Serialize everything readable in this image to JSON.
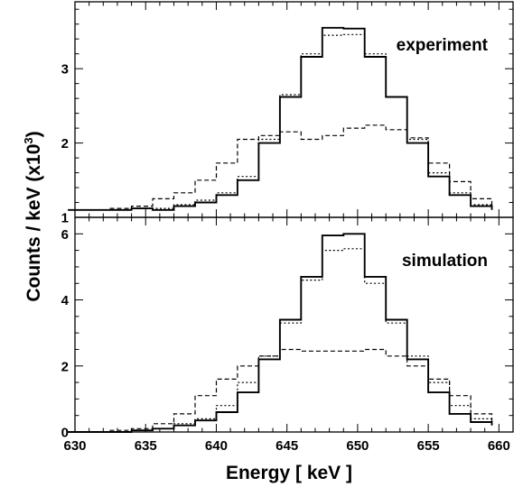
{
  "chart_data": {
    "type": "line",
    "step": true,
    "xlabel": "Energy [ keV ]",
    "ylabel": "Counts / keV (x10",
    "ylabel_sup": "3",
    "ylabel_tail": ")",
    "xlim": [
      630,
      661
    ],
    "x_tick_labels": [
      "630",
      "635",
      "640",
      "645",
      "650",
      "655",
      "660"
    ],
    "bin_edges": [
      629.5,
      631,
      632.5,
      634,
      635.5,
      637,
      638.5,
      640,
      641.5,
      643,
      644.5,
      646,
      647.5,
      649,
      650.5,
      652,
      653.5,
      655,
      656.5,
      658,
      659.5
    ],
    "line_styles": [
      "solid",
      "dotted",
      "dashed"
    ],
    "panels": [
      {
        "label": "experiment",
        "ylim": [
          1,
          3.9
        ],
        "y_tick_labels": [
          "1",
          "2",
          "3"
        ],
        "series": [
          {
            "style": "solid",
            "values": [
              1.1,
              1.1,
              1.1,
              1.12,
              1.1,
              1.15,
              1.2,
              1.3,
              1.5,
              2.0,
              2.62,
              3.16,
              3.55,
              3.54,
              3.16,
              2.62,
              2.0,
              1.55,
              1.3,
              1.15,
              1.1
            ]
          },
          {
            "style": "dotted",
            "values": [
              1.1,
              1.1,
              1.1,
              1.12,
              1.12,
              1.17,
              1.23,
              1.33,
              1.55,
              2.05,
              2.65,
              3.2,
              3.45,
              3.46,
              3.2,
              2.62,
              2.05,
              1.6,
              1.33,
              1.17,
              1.1
            ]
          },
          {
            "style": "dashed",
            "values": [
              1.1,
              1.1,
              1.12,
              1.15,
              1.25,
              1.33,
              1.5,
              1.73,
              2.05,
              2.1,
              2.15,
              2.05,
              2.1,
              2.2,
              2.24,
              2.18,
              2.07,
              1.73,
              1.48,
              1.25,
              1.15
            ]
          }
        ]
      },
      {
        "label": "simulation",
        "ylim": [
          0,
          6.5
        ],
        "y_tick_labels": [
          "0",
          "2",
          "4",
          "6"
        ],
        "series": [
          {
            "style": "solid",
            "values": [
              0.0,
              0.0,
              0.0,
              0.05,
              0.1,
              0.2,
              0.35,
              0.6,
              1.2,
              2.2,
              3.4,
              4.7,
              5.95,
              6.0,
              4.7,
              3.4,
              2.2,
              1.2,
              0.55,
              0.3,
              0.2
            ]
          },
          {
            "style": "dotted",
            "values": [
              0.0,
              0.0,
              0.0,
              0.05,
              0.1,
              0.25,
              0.4,
              0.8,
              1.5,
              2.3,
              3.3,
              4.6,
              5.5,
              5.55,
              4.5,
              3.3,
              2.3,
              1.5,
              0.8,
              0.4,
              0.2
            ]
          },
          {
            "style": "dashed",
            "values": [
              0.0,
              0.0,
              0.05,
              0.1,
              0.25,
              0.55,
              1.1,
              1.6,
              2.0,
              2.3,
              2.5,
              2.45,
              2.45,
              2.45,
              2.5,
              2.3,
              2.0,
              1.6,
              1.1,
              0.55,
              0.25
            ]
          }
        ]
      }
    ]
  }
}
